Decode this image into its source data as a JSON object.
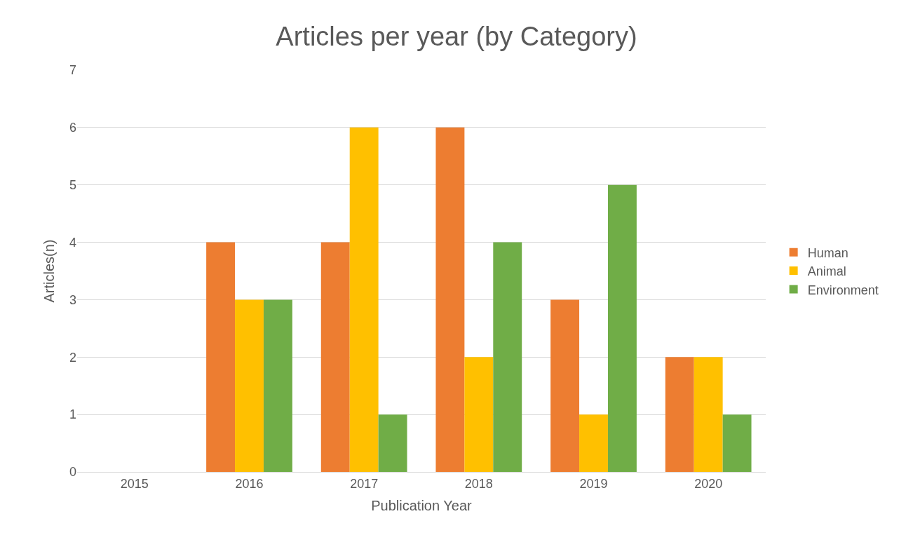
{
  "chart_data": {
    "type": "bar",
    "title": "Articles per year (by Category)",
    "xlabel": "Publication Year",
    "ylabel": "Articles(n)",
    "categories": [
      "2015",
      "2016",
      "2017",
      "2018",
      "2019",
      "2020"
    ],
    "series": [
      {
        "name": "Human",
        "color": "#ed7d31",
        "values": [
          0,
          4,
          4,
          6,
          3,
          2
        ]
      },
      {
        "name": "Animal",
        "color": "#ffc000",
        "values": [
          0,
          3,
          6,
          2,
          1,
          2
        ]
      },
      {
        "name": "Environment",
        "color": "#70ad47",
        "values": [
          0,
          3,
          1,
          4,
          5,
          1
        ]
      }
    ],
    "ylim": [
      0,
      7
    ],
    "yticks": [
      0,
      1,
      2,
      3,
      4,
      5,
      6,
      7
    ],
    "grid": "y",
    "legend": "right"
  }
}
